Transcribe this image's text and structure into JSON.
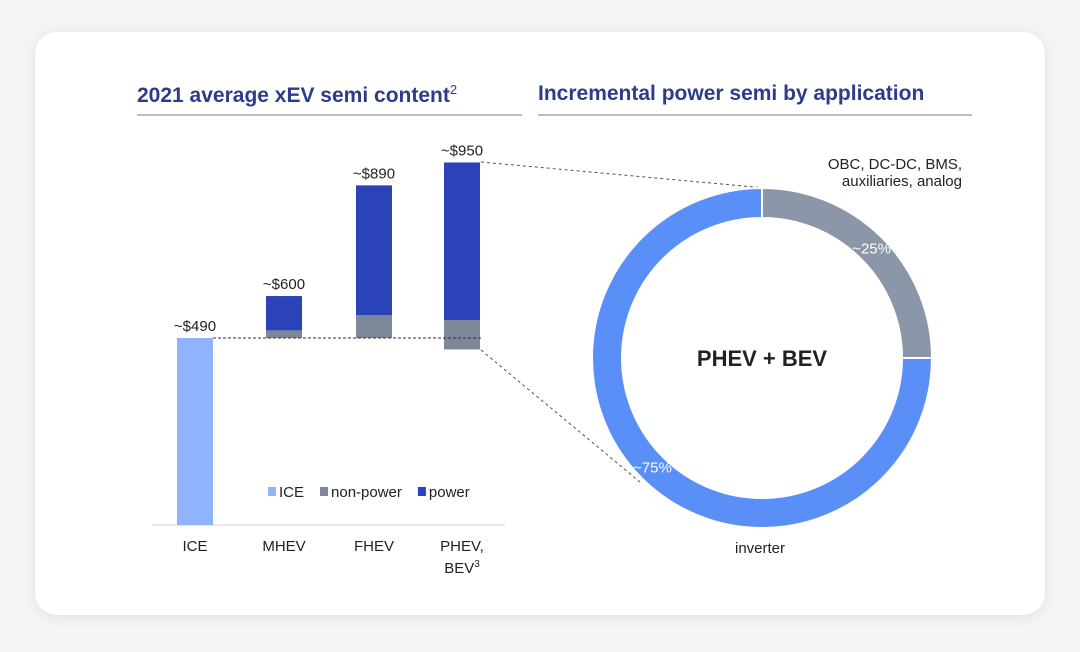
{
  "chart_data": [
    {
      "type": "bar",
      "title": "2021 average xEV semi content",
      "title_footnote": "2",
      "categories": [
        "ICE",
        "MHEV",
        "FHEV",
        "PHEV, BEV"
      ],
      "category_footnotes": [
        null,
        null,
        null,
        "3"
      ],
      "base": [
        0,
        490,
        490,
        460
      ],
      "series": [
        {
          "name": "ICE",
          "color": "#8fb3fd",
          "values": [
            490,
            null,
            null,
            null
          ]
        },
        {
          "name": "non-power",
          "color": "#7c8797",
          "values": [
            null,
            20,
            60,
            77
          ]
        },
        {
          "name": "power",
          "color": "#2a43b8",
          "values": [
            null,
            90,
            340,
            413
          ]
        }
      ],
      "totals": [
        490,
        600,
        890,
        950
      ],
      "total_labels": [
        "~$490",
        "~$600",
        "~$890",
        "~$950"
      ],
      "ylim": [
        0,
        1000
      ]
    },
    {
      "type": "pie",
      "title": "Incremental power semi by application",
      "center_label": "PHEV + BEV",
      "categories": [
        "OBC, DC-DC, BMS, auxiliaries, analog",
        "inverter"
      ],
      "values": [
        25,
        75
      ],
      "value_labels": [
        "~25%",
        "~75%"
      ],
      "colors": [
        "#8b97a9",
        "#5a8ff8"
      ]
    }
  ]
}
